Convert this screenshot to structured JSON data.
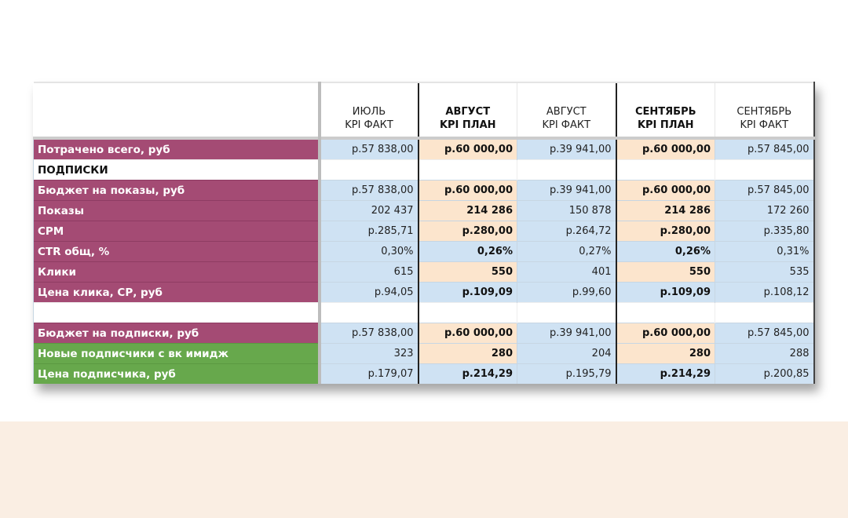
{
  "table": {
    "columns": [
      {
        "line1": "ИЮЛЬ",
        "line2": "KPI ФАКТ",
        "bold": false
      },
      {
        "line1": "АВГУСТ",
        "line2": "KPI ПЛАН",
        "bold": true
      },
      {
        "line1": "АВГУСТ",
        "line2": "KPI ФАКТ",
        "bold": false
      },
      {
        "line1": "СЕНТЯБРЬ",
        "line2": "KPI ПЛАН",
        "bold": true
      },
      {
        "line1": "СЕНТЯБРЬ",
        "line2": "KPI ФАКТ",
        "bold": false
      }
    ],
    "rows": [
      {
        "label": "Потрачено всего, руб",
        "style": "purple",
        "values": [
          "р.57 838,00",
          "р.60 000,00",
          "р.39 941,00",
          "р.60 000,00",
          "р.57 845,00"
        ]
      },
      {
        "label": "ПОДПИСКИ",
        "style": "section",
        "values": [
          "",
          "",
          "",
          "",
          ""
        ]
      },
      {
        "label": "Бюджет на показы, руб",
        "style": "purple",
        "values": [
          "р.57 838,00",
          "р.60 000,00",
          "р.39 941,00",
          "р.60 000,00",
          "р.57 845,00"
        ]
      },
      {
        "label": "Показы",
        "style": "purple",
        "values": [
          "202 437",
          "214 286",
          "150 878",
          "214 286",
          "172 260"
        ]
      },
      {
        "label": "CPM",
        "style": "purple",
        "values": [
          "р.285,71",
          "р.280,00",
          "р.264,72",
          "р.280,00",
          "р.335,80"
        ]
      },
      {
        "label": "CTR общ, %",
        "style": "purple",
        "values": [
          "0,30%",
          "0,26%",
          "0,27%",
          "0,26%",
          "0,31%"
        ],
        "plan_blue": true
      },
      {
        "label": "Клики",
        "style": "purple",
        "values": [
          "615",
          "550",
          "401",
          "550",
          "535"
        ]
      },
      {
        "label": "Цена клика, СР, руб",
        "style": "purple",
        "values": [
          "р.94,05",
          "р.109,09",
          "р.99,60",
          "р.109,09",
          "р.108,12"
        ],
        "plan_blue": true
      },
      {
        "label": "",
        "style": "blank",
        "values": [
          "",
          "",
          "",
          "",
          ""
        ]
      },
      {
        "label": "Бюджет на подписки, руб",
        "style": "purple",
        "values": [
          "р.57 838,00",
          "р.60 000,00",
          "р.39 941,00",
          "р.60 000,00",
          "р.57 845,00"
        ]
      },
      {
        "label": "Новые подписчики с вк имидж",
        "style": "green",
        "values": [
          "323",
          "280",
          "204",
          "280",
          "288"
        ]
      },
      {
        "label": "Цена подписчика, руб",
        "style": "green",
        "values": [
          "р.179,07",
          "р.214,29",
          "р.195,79",
          "р.214,29",
          "р.200,85"
        ],
        "plan_blue": true
      }
    ]
  },
  "colors": {
    "label_purple": "#a44b74",
    "label_green": "#67a84c",
    "fact_blue": "#cfe2f3",
    "plan_peach": "#fce5cd",
    "band_beige": "#faeee3"
  }
}
